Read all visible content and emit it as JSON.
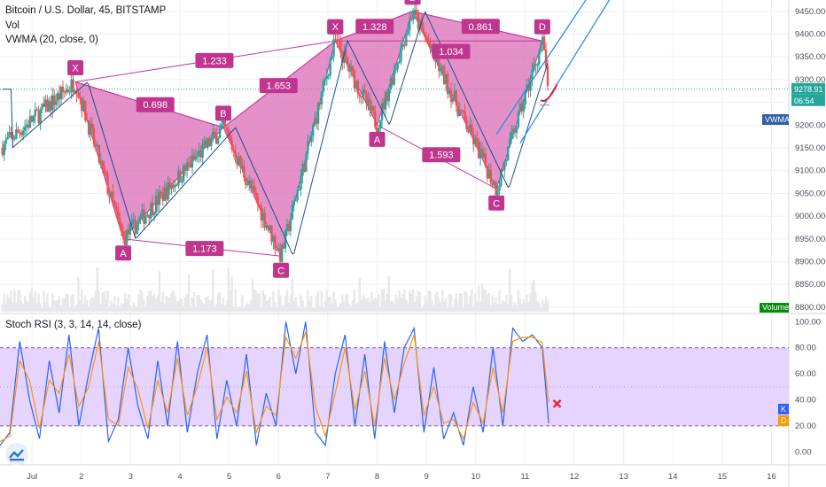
{
  "header": {
    "symbol": "Bitcoin / U.S. Dollar, 45, BITSTAMP",
    "vol": "Vol",
    "vwma": "VWMA (20, close, 0)"
  },
  "rsi_panel": {
    "title": "Stoch RSI (3, 3, 14, 14, close)"
  },
  "colors": {
    "pattern_fill": "#d96cb6",
    "pattern_edge": "#c2399c",
    "label_bg": "#c0368f",
    "rsi_band": "#e5d4ff",
    "k_line": "#2962ff",
    "d_line": "#ff9800",
    "vwma_line": "#1e4f8c",
    "up_candle": "#26a69a",
    "down_candle": "#ef5350",
    "channel": "#1e88e5",
    "volume_tag": "#0a8a0a",
    "vwma_tag": "#2f5fa8",
    "k_tag": "#2962ff",
    "d_tag": "#ff9800",
    "cross_mark": "#e91e3a",
    "arc_mark": "#e91e3a"
  },
  "price_tags": {
    "last_price": "9278.91",
    "countdown": "06:54",
    "vwma_tag": "VWMA",
    "volume_tag": "Volume",
    "k_tag": "K",
    "d_tag": "D"
  },
  "chart_data": [
    {
      "type": "line",
      "title": "Bitcoin / U.S. Dollar, 45, BITSTAMP",
      "x_ticks": [
        "Jul",
        "2",
        "3",
        "4",
        "5",
        "6",
        "7",
        "8",
        "9",
        "10",
        "11",
        "12",
        "13",
        "14",
        "15",
        "16"
      ],
      "y_ticks": [
        8800,
        8850,
        8900,
        8950,
        9000,
        9050,
        9100,
        9150,
        9200,
        9250,
        9300,
        9350,
        9400,
        9450
      ],
      "ylim": [
        8790,
        9475
      ],
      "xlim": [
        0.35,
        16.35
      ],
      "last_price": 9278.91,
      "patterns": [
        {
          "points": [
            {
              "label": "X",
              "x": 1.88,
              "y": 9295
            },
            {
              "label": "A",
              "x": 2.85,
              "y": 8950
            },
            {
              "label": "B",
              "x": 4.88,
              "y": 9195
            },
            {
              "label": "C",
              "x": 6.05,
              "y": 8912
            },
            {
              "label": "D",
              "x": 7.15,
              "y": 9385
            }
          ],
          "ratios": [
            {
              "label": "0.698",
              "x": 3.5,
              "y": 9245
            },
            {
              "label": "1.173",
              "x": 4.5,
              "y": 8929
            },
            {
              "label": "1.653",
              "x": 6.0,
              "y": 9287
            },
            {
              "label": "1.233",
              "x": 4.7,
              "y": 9342
            }
          ]
        },
        {
          "points": [
            {
              "label": "X",
              "x": 7.15,
              "y": 9385
            },
            {
              "label": "A",
              "x": 8.0,
              "y": 9200
            },
            {
              "label": "B",
              "x": 8.72,
              "y": 9450
            },
            {
              "label": "C",
              "x": 10.42,
              "y": 9060
            },
            {
              "label": "D",
              "x": 11.35,
              "y": 9385
            }
          ],
          "ratios": [
            {
              "label": "1.328",
              "x": 7.95,
              "y": 9417
            },
            {
              "label": "1.034",
              "x": 9.5,
              "y": 9362
            },
            {
              "label": "0.861",
              "x": 10.1,
              "y": 9417
            },
            {
              "label": "1.593",
              "x": 9.3,
              "y": 9135
            }
          ]
        }
      ]
    },
    {
      "type": "line",
      "title": "Stoch RSI (3, 3, 14, 14, close)",
      "y_ticks": [
        0,
        20,
        40,
        60,
        80,
        100
      ],
      "ylim": [
        -10,
        105
      ],
      "band": [
        20,
        80
      ],
      "series": [
        {
          "name": "K",
          "x": [
            0.35,
            0.55,
            0.75,
            0.95,
            1.15,
            1.35,
            1.55,
            1.75,
            1.95,
            2.15,
            2.35,
            2.55,
            2.75,
            2.95,
            3.15,
            3.35,
            3.55,
            3.75,
            3.95,
            4.15,
            4.35,
            4.55,
            4.75,
            4.95,
            5.15,
            5.35,
            5.55,
            5.75,
            5.95,
            6.15,
            6.35,
            6.55,
            6.75,
            6.95,
            7.15,
            7.35,
            7.55,
            7.75,
            7.95,
            8.15,
            8.35,
            8.55,
            8.75,
            8.95,
            9.15,
            9.35,
            9.55,
            9.75,
            9.95,
            10.15,
            10.35,
            10.55,
            10.75,
            10.95,
            11.15,
            11.35,
            11.48
          ],
          "values": [
            5,
            15,
            85,
            40,
            10,
            70,
            30,
            90,
            20,
            60,
            95,
            8,
            25,
            80,
            35,
            10,
            70,
            20,
            85,
            15,
            60,
            90,
            10,
            55,
            20,
            75,
            5,
            45,
            20,
            100,
            60,
            100,
            15,
            5,
            60,
            90,
            20,
            75,
            10,
            85,
            30,
            80,
            95,
            15,
            65,
            10,
            30,
            5,
            50,
            15,
            80,
            20,
            95,
            85,
            90,
            80,
            22
          ]
        },
        {
          "name": "D",
          "x": [
            0.35,
            0.55,
            0.75,
            0.95,
            1.15,
            1.35,
            1.55,
            1.75,
            1.95,
            2.15,
            2.35,
            2.55,
            2.75,
            2.95,
            3.15,
            3.35,
            3.55,
            3.75,
            3.95,
            4.15,
            4.35,
            4.55,
            4.75,
            4.95,
            5.15,
            5.35,
            5.55,
            5.75,
            5.95,
            6.15,
            6.35,
            6.55,
            6.75,
            6.95,
            7.15,
            7.35,
            7.55,
            7.75,
            7.95,
            8.15,
            8.35,
            8.55,
            8.75,
            8.95,
            9.15,
            9.35,
            9.55,
            9.75,
            9.95,
            10.15,
            10.35,
            10.55,
            10.75,
            10.95,
            11.15,
            11.35,
            11.48
          ],
          "values": [
            8,
            12,
            70,
            55,
            18,
            55,
            45,
            75,
            35,
            50,
            85,
            25,
            20,
            65,
            48,
            18,
            55,
            30,
            72,
            28,
            50,
            80,
            25,
            42,
            30,
            62,
            15,
            35,
            28,
            88,
            72,
            92,
            35,
            12,
            45,
            80,
            32,
            62,
            20,
            72,
            40,
            68,
            90,
            28,
            50,
            22,
            25,
            10,
            38,
            22,
            65,
            30,
            85,
            88,
            88,
            84,
            38
          ]
        }
      ]
    }
  ]
}
